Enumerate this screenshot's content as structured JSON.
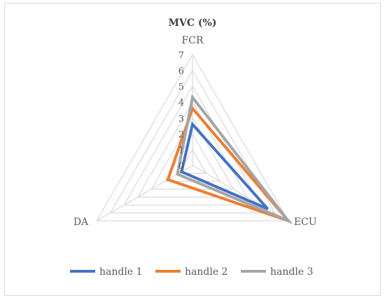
{
  "chart_data": {
    "type": "radar",
    "title": "MVC (%)",
    "axes": [
      "FCR",
      "ECU",
      "DA"
    ],
    "rlim": [
      0,
      7
    ],
    "tick_labels": [
      "0",
      "1",
      "2",
      "3",
      "4",
      "5",
      "6",
      "7"
    ],
    "grid": true,
    "legend": "bottom",
    "series": [
      {
        "name": "handle 1",
        "values": [
          2.6,
          5.5,
          0.8
        ],
        "color": "#4472C4"
      },
      {
        "name": "handle 2",
        "values": [
          3.6,
          7.0,
          1.8
        ],
        "color": "#ED7D31"
      },
      {
        "name": "handle 3",
        "values": [
          4.3,
          7.0,
          1.1
        ],
        "color": "#A5A5A5"
      }
    ]
  }
}
